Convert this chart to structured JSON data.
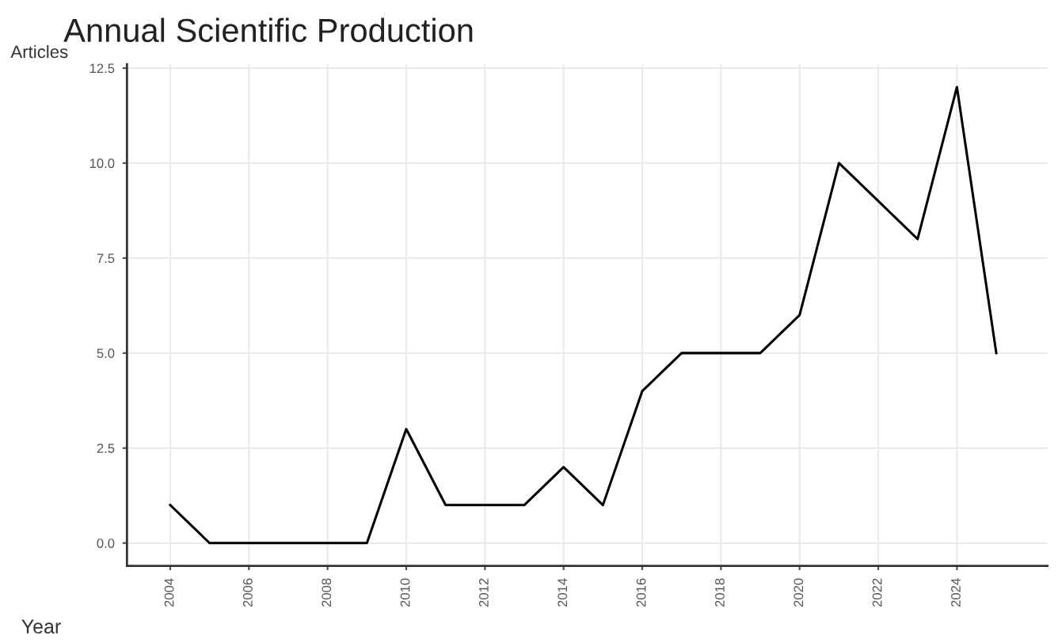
{
  "chart_data": {
    "type": "line",
    "title": "Annual Scientific Production",
    "xlabel": "Year",
    "ylabel": "Articles",
    "x": [
      2004,
      2005,
      2006,
      2007,
      2008,
      2009,
      2010,
      2011,
      2012,
      2013,
      2014,
      2015,
      2016,
      2017,
      2018,
      2019,
      2020,
      2021,
      2022,
      2023,
      2024,
      2025
    ],
    "series": [
      {
        "color": "#000000",
        "values": [
          1,
          0,
          0,
          0,
          0,
          0,
          3,
          1,
          1,
          1,
          2,
          1,
          4,
          5,
          5,
          5,
          6,
          10,
          9,
          8,
          12,
          5
        ]
      }
    ],
    "xlim": [
      2002.9,
      2026.3
    ],
    "xticks": [
      2004,
      2006,
      2008,
      2010,
      2012,
      2014,
      2016,
      2018,
      2020,
      2022,
      2024
    ],
    "ylim": [
      -0.6,
      12.6
    ],
    "yticks": [
      {
        "value": 0,
        "label": "0.0"
      },
      {
        "value": 2.5,
        "label": "2.5"
      },
      {
        "value": 5,
        "label": "5.0"
      },
      {
        "value": 7.5,
        "label": "7.5"
      },
      {
        "value": 10,
        "label": "10.0"
      },
      {
        "value": 12.5,
        "label": "12.5"
      }
    ],
    "grid": true,
    "line_style": "solid"
  }
}
